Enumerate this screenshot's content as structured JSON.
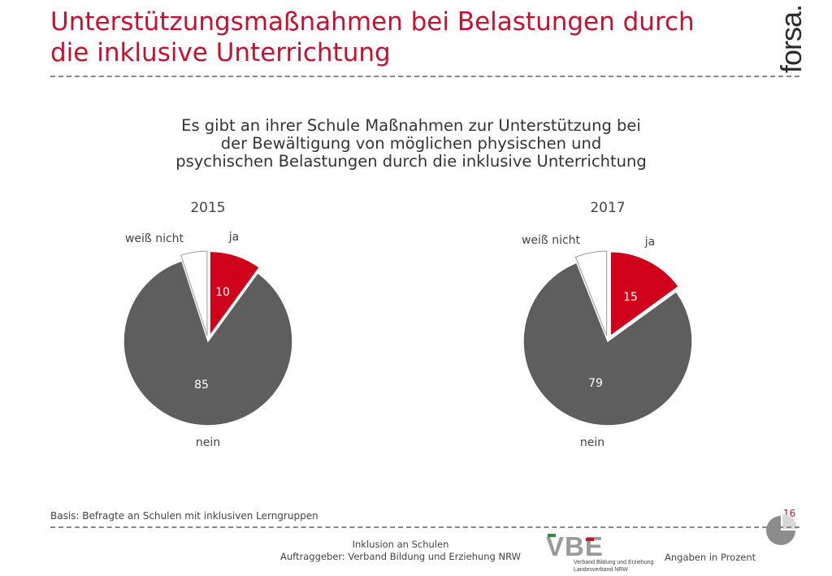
{
  "header": {
    "title_line1": "Unterstützungsmaßnahmen bei Belastungen durch",
    "title_line2": "die inklusive Unterrichtung",
    "brand": "forsa."
  },
  "question": {
    "line1": "Es gibt an ihrer Schule Maßnahmen zur Unterstützung bei",
    "line2": "der Bewältigung von möglichen physischen und",
    "line3": "psychischen Belastungen durch die inklusive Unterrichtung"
  },
  "chart_data": [
    {
      "type": "pie",
      "title": "2015",
      "slices": [
        {
          "label": "ja",
          "value": 10,
          "color": "#d0021b",
          "exploded": true
        },
        {
          "label": "nein",
          "value": 85,
          "color": "#5e5e5e",
          "exploded": false
        },
        {
          "label": "weiß nicht",
          "value": 5,
          "color": "#ffffff",
          "exploded": true
        }
      ]
    },
    {
      "type": "pie",
      "title": "2017",
      "slices": [
        {
          "label": "ja",
          "value": 15,
          "color": "#d0021b",
          "exploded": true
        },
        {
          "label": "nein",
          "value": 79,
          "color": "#5e5e5e",
          "exploded": false
        },
        {
          "label": "weiß nicht",
          "value": 6,
          "color": "#ffffff",
          "exploded": true
        }
      ]
    }
  ],
  "footer": {
    "basis": "Basis: Befragte an Schulen mit inklusiven Lerngruppen",
    "page_number": "16",
    "center_line1": "Inklusion an Schulen",
    "center_line2": "Auftraggeber: Verband Bildung und Erziehung NRW",
    "vbe_letters": "VBE",
    "vbe_line1": "Verband Bildung und Erziehung",
    "vbe_line2": "Landesverband NRW",
    "units": "Angaben in Prozent"
  },
  "colors": {
    "accent": "#c8102e",
    "slice_ja": "#d0021b",
    "slice_nein": "#5e5e5e",
    "slice_weiss_nicht": "#ffffff"
  }
}
